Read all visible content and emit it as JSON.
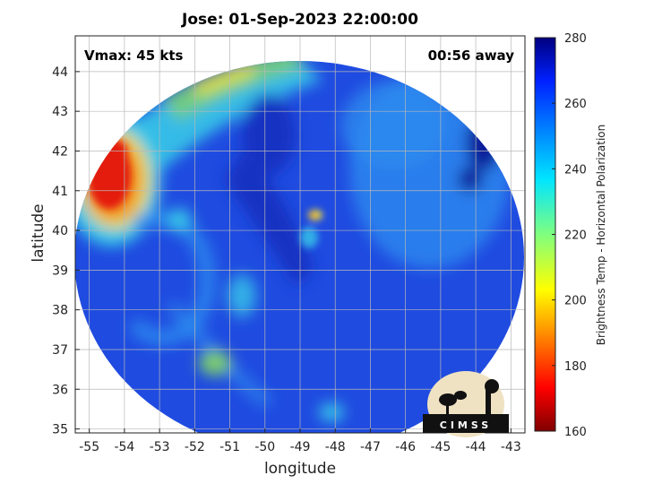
{
  "title": "Jose: 01-Sep-2023 22:00:00",
  "annotations": {
    "vmax": "Vmax: 45 kts",
    "time_away": "00:56 away"
  },
  "logo_text": "CIMSS",
  "map": {
    "xlabel": "longitude",
    "ylabel": "latitude",
    "xlim": [
      -55.4,
      -42.6
    ],
    "ylim": [
      34.9,
      44.9
    ],
    "xticks": [
      -55,
      -54,
      -53,
      -52,
      -51,
      -50,
      -49,
      -48,
      -47,
      -46,
      -45,
      -44,
      -43
    ],
    "yticks": [
      35,
      36,
      37,
      38,
      39,
      40,
      41,
      42,
      43,
      44
    ],
    "grid": true,
    "colors": {
      "background": "#1f4be0",
      "deep": "#1333c2",
      "cold_pocket": "#0b1f9a",
      "light_band": "#2d8ef0",
      "cyan": "#39c8e8",
      "green": "#7fd06a",
      "yellow": "#f0e03a",
      "orange": "#f08a20",
      "red": "#e41e10"
    }
  },
  "colorbar": {
    "label": "Brightness Temp - Horizontal Polarization",
    "min": 160,
    "max": 280,
    "ticks": [
      160,
      180,
      200,
      220,
      240,
      260,
      280
    ],
    "colormap": "jet"
  }
}
